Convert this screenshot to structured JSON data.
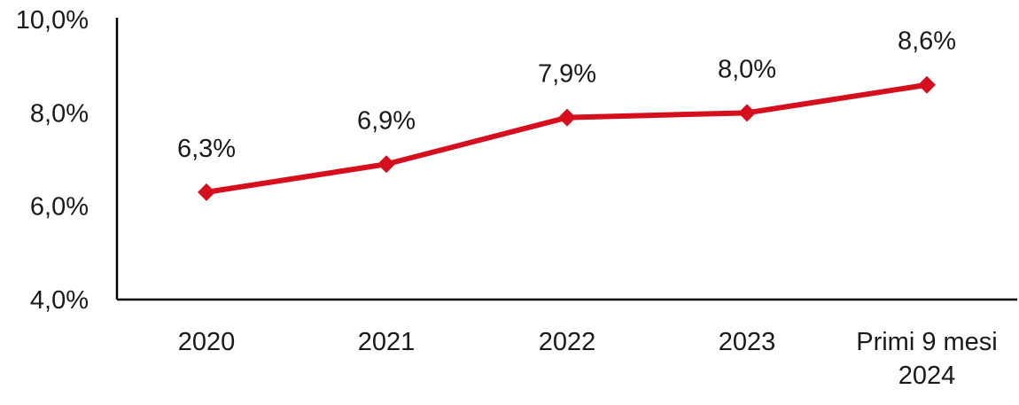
{
  "chart_data": {
    "type": "line",
    "categories": [
      [
        "2020"
      ],
      [
        "2021"
      ],
      [
        "2022"
      ],
      [
        "2023"
      ],
      [
        "Primi 9 mesi",
        "2024"
      ]
    ],
    "series": [
      {
        "values": [
          6.3,
          6.9,
          7.9,
          8.0,
          8.6
        ],
        "data_labels": [
          "6,3%",
          "6,9%",
          "7,9%",
          "8,0%",
          "8,6%"
        ]
      }
    ],
    "yticks": [
      {
        "value": 4.0,
        "label": "4,0%"
      },
      {
        "value": 6.0,
        "label": "6,0%"
      },
      {
        "value": 8.0,
        "label": "8,0%"
      },
      {
        "value": 10.0,
        "label": "10,0%"
      }
    ],
    "ylim": [
      4.0,
      10.0
    ],
    "grid": false,
    "title": "",
    "xlabel": "",
    "ylabel": "",
    "colors": {
      "series": "#d60f1e",
      "axis": "#000000",
      "text": "#1a1a1a"
    },
    "marker": "diamond"
  }
}
